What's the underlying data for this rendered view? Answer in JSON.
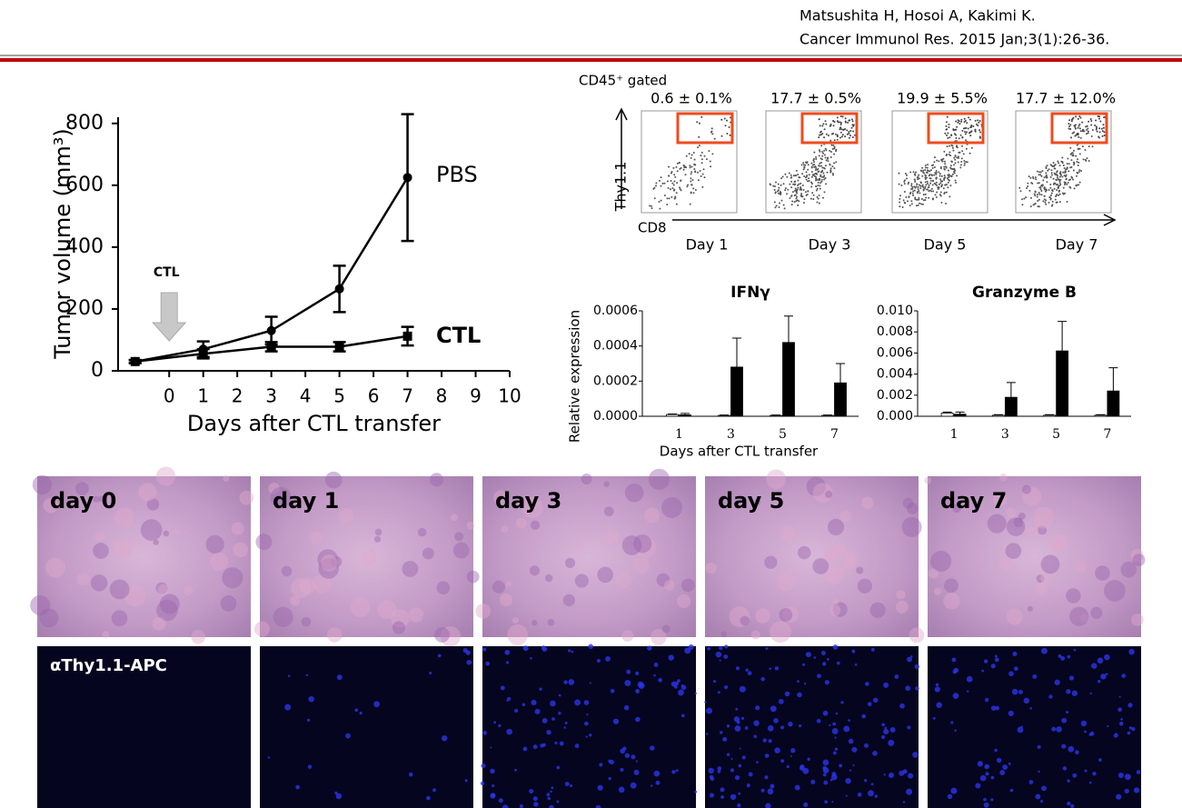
{
  "citation": [
    "Matsushita H, Hosoi A, Kakimi K.",
    "Cancer Immunol Res. 2015 Jan;3(1):26-36."
  ],
  "chart_data": [
    {
      "type": "line",
      "y_label": "Tumor volume (mm³)",
      "x_label": "Days after CTL transfer",
      "annotation": "CTL",
      "annotation_x": 0,
      "x": [
        -1,
        1,
        3,
        5,
        7
      ],
      "xlim": [
        -1.5,
        10
      ],
      "xticks": [
        0,
        1,
        2,
        3,
        4,
        5,
        6,
        7,
        8,
        9,
        10
      ],
      "ylim": [
        0,
        820
      ],
      "yticks": [
        0,
        200,
        400,
        600,
        800
      ],
      "series": [
        {
          "name": "PBS",
          "color": "#000000",
          "label_color": "#000000",
          "marker": "circle",
          "values": [
            30,
            70,
            130,
            265,
            625
          ],
          "errors": [
            5,
            25,
            45,
            75,
            205
          ]
        },
        {
          "name": "CTL",
          "color": "#000000",
          "label_color": "#e8141b",
          "marker": "square",
          "values": [
            30,
            55,
            78,
            78,
            112
          ],
          "errors": [
            5,
            15,
            15,
            15,
            30
          ]
        }
      ]
    },
    {
      "type": "bar",
      "title": "IFNγ",
      "y_label": "Relative expression",
      "x_label": "Days after CTL transfer",
      "categories": [
        "1",
        "3",
        "5",
        "7"
      ],
      "ylim": [
        0,
        0.0006
      ],
      "yticks": [
        {
          "value": 0,
          "label": "0.0000"
        },
        {
          "value": 0.0002,
          "label": "0.0002"
        },
        {
          "value": 0.0004,
          "label": "0.0004"
        },
        {
          "value": 0.0006,
          "label": "0.0006"
        }
      ],
      "series": [
        {
          "color": "#ffffff",
          "values": [
            1e-05,
            5e-06,
            5e-06,
            5e-06
          ],
          "errors": [
            3e-06,
            2e-06,
            2e-06,
            2e-06
          ]
        },
        {
          "color": "#000000",
          "values": [
            8e-06,
            0.00028,
            0.00042,
            0.00019
          ],
          "errors": [
            8e-06,
            0.000165,
            0.00015,
            0.00011
          ]
        }
      ]
    },
    {
      "type": "bar",
      "title": "Granzyme B",
      "categories": [
        "1",
        "3",
        "5",
        "7"
      ],
      "ylim": [
        0,
        0.01
      ],
      "yticks": [
        {
          "value": 0,
          "label": "0.000"
        },
        {
          "value": 0.002,
          "label": "0.002"
        },
        {
          "value": 0.004,
          "label": "0.004"
        },
        {
          "value": 0.006,
          "label": "0.006"
        },
        {
          "value": 0.008,
          "label": "0.008"
        },
        {
          "value": 0.01,
          "label": "0.010"
        }
      ],
      "series": [
        {
          "color": "#ffffff",
          "values": [
            0.0003,
            0.0001,
            0.0001,
            0.0001
          ],
          "errors": [
            0.0001,
            5e-05,
            5e-05,
            5e-05
          ]
        },
        {
          "color": "#000000",
          "values": [
            0.0002,
            0.0018,
            0.0062,
            0.0024
          ],
          "errors": [
            0.0002,
            0.0014,
            0.0028,
            0.0022
          ]
        }
      ]
    }
  ],
  "flow": {
    "title": "CD45⁺ gated",
    "y_label": "Thy1.1",
    "x_label": "CD8",
    "panels": [
      {
        "label": "Day 1",
        "percent": "0.6 ± 0.1%"
      },
      {
        "label": "Day 3",
        "percent": "17.7 ± 0.5%"
      },
      {
        "label": "Day 5",
        "percent": "19.9 ± 5.5%"
      },
      {
        "label": "Day 7",
        "percent": "17.7 ± 12.0%"
      }
    ]
  },
  "histology": {
    "labels": [
      "day 0",
      "day 1",
      "day 3",
      "day 5",
      "day 7"
    ],
    "stain": "αThy1.1-APC"
  }
}
